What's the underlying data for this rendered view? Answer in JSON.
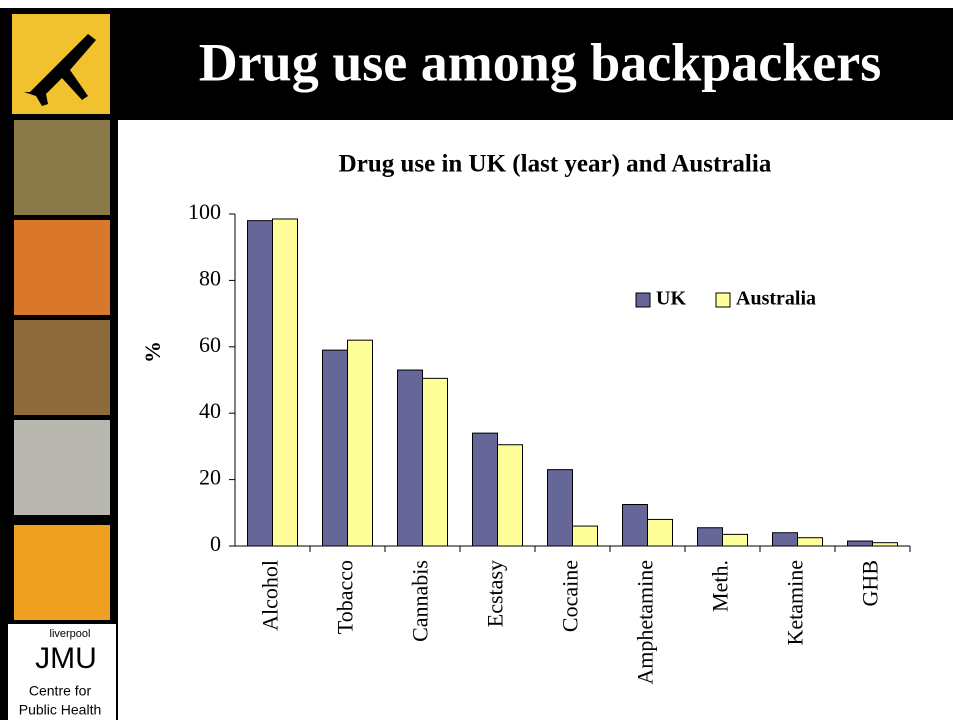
{
  "slide_title": "Drug use among backpackers",
  "sidebar": {
    "logo_top": "liverpool",
    "logo_main": "JMU",
    "caption_line1": "Centre for",
    "caption_line2": "Public Health"
  },
  "chart_data": {
    "type": "bar",
    "title": "Drug use in UK (last year) and Australia",
    "y_label": "%",
    "categories": [
      "Alcohol",
      "Tobacco",
      "Cannabis",
      "Ecstasy",
      "Cocaine",
      "Amphetamine",
      "Meth.",
      "Ketamine",
      "GHB"
    ],
    "series": [
      {
        "name": "UK",
        "color": "#666699",
        "values": [
          98,
          59,
          53,
          34,
          23,
          12.5,
          5.5,
          4,
          1.5
        ]
      },
      {
        "name": "Australia",
        "color": "#ffff99",
        "values": [
          98.5,
          62,
          50.5,
          30.5,
          6,
          8,
          3.5,
          2.5,
          1
        ]
      }
    ],
    "ylim": [
      0,
      100
    ],
    "yticks": [
      0,
      20,
      40,
      60,
      80,
      100
    ],
    "grid": false,
    "legend": "upper right"
  }
}
